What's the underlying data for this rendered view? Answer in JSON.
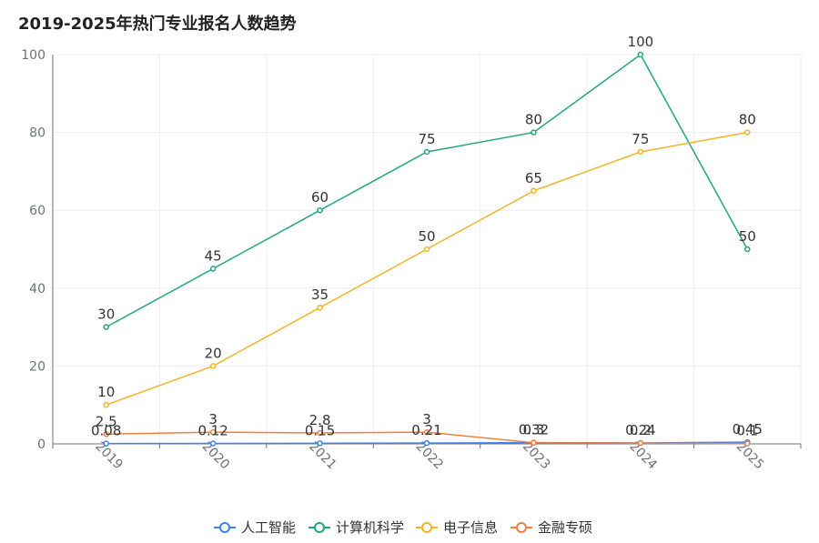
{
  "chart_data": {
    "type": "line",
    "title": "2019-2025年热门专业报名人数趋势",
    "xlabel": "",
    "ylabel": "",
    "categories": [
      "2019",
      "2020",
      "2021",
      "2022",
      "2023",
      "2024",
      "2025"
    ],
    "ylim": [
      0,
      100
    ],
    "yticks": [
      0,
      20,
      40,
      60,
      80,
      100
    ],
    "grid": true,
    "legend_position": "bottom",
    "series": [
      {
        "name": "人工智能",
        "color": "#3b82f6",
        "values": [
          0.08,
          0.12,
          0.15,
          0.21,
          0.32,
          0.24,
          0.45
        ],
        "area": true
      },
      {
        "name": "计算机科学",
        "color": "#22a77a",
        "values": [
          30,
          45,
          60,
          75,
          80,
          100,
          50
        ],
        "area": false
      },
      {
        "name": "电子信息",
        "color": "#f0b429",
        "values": [
          10,
          20,
          35,
          50,
          65,
          75,
          80
        ],
        "area": false
      },
      {
        "name": "金融专硕",
        "color": "#f07f3c",
        "values": [
          2.5,
          3,
          2.8,
          3,
          0.3,
          0.2,
          0.1
        ],
        "area": false
      }
    ]
  }
}
